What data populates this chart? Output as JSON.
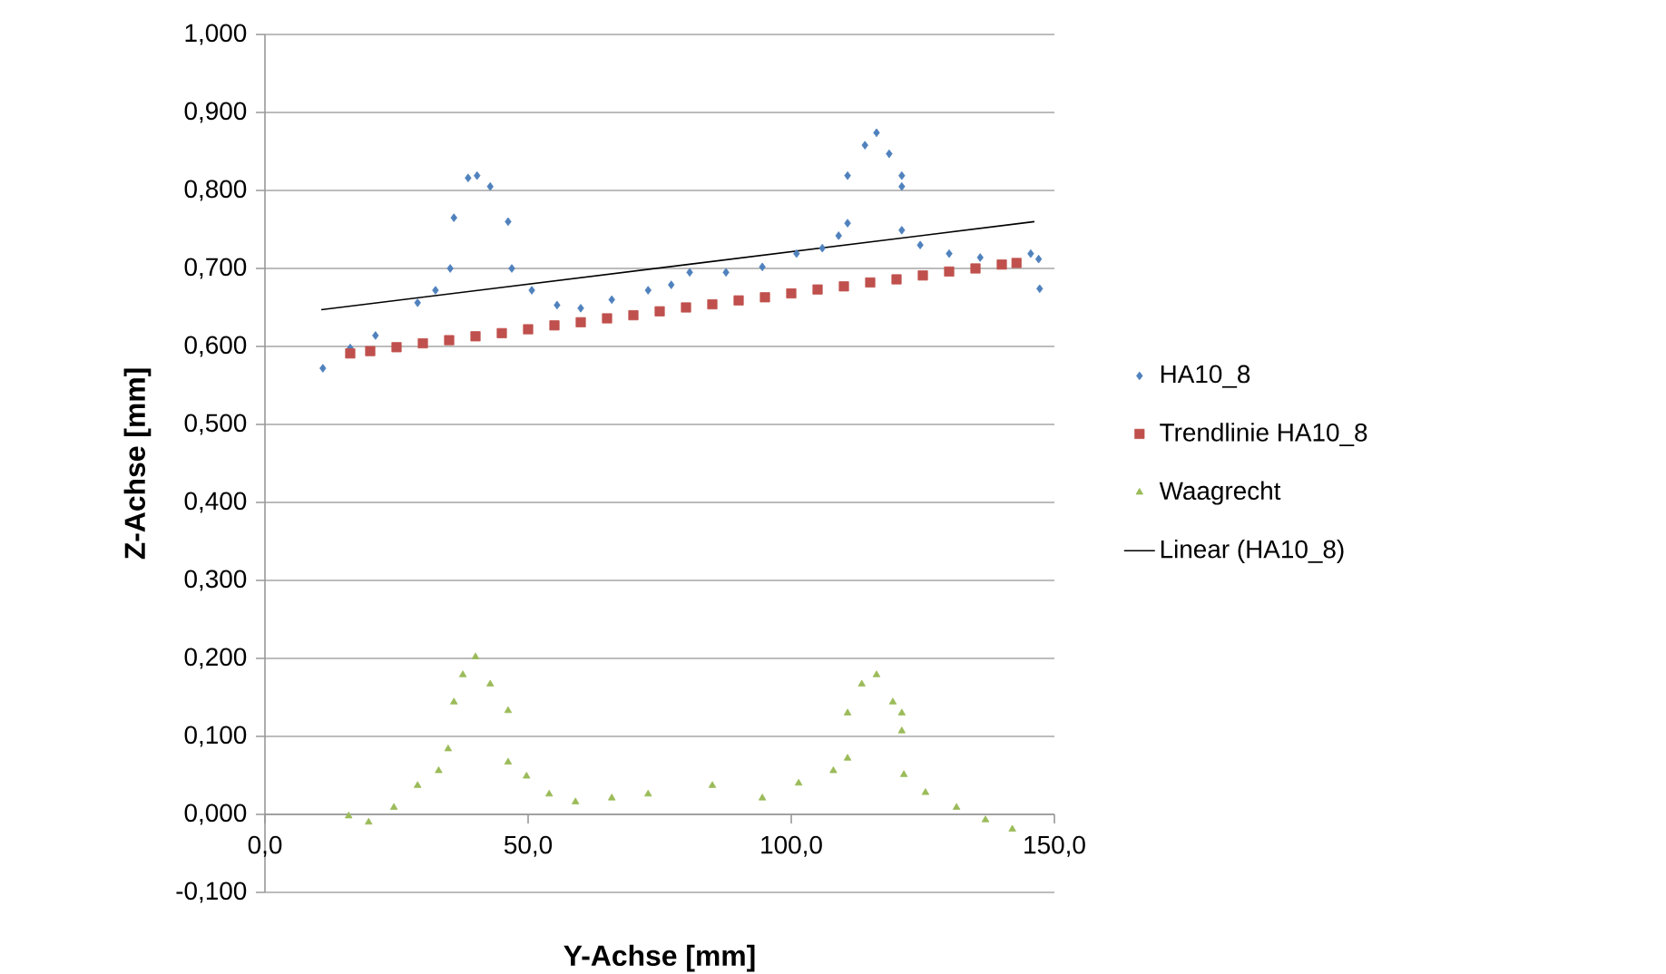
{
  "chart_data": {
    "type": "scatter",
    "xlabel": "Y-Achse [mm]",
    "ylabel": "Z-Achse [mm]",
    "xlim": [
      0,
      150
    ],
    "ylim": [
      -0.1,
      1.0
    ],
    "xticks": [
      {
        "value": 0,
        "label": "0,0"
      },
      {
        "value": 50,
        "label": "50,0"
      },
      {
        "value": 100,
        "label": "100,0"
      },
      {
        "value": 150,
        "label": "150,0"
      }
    ],
    "yticks": [
      {
        "value": -0.1,
        "label": "-0,100"
      },
      {
        "value": 0,
        "label": "0,000"
      },
      {
        "value": 0.1,
        "label": "0,100"
      },
      {
        "value": 0.2,
        "label": "0,200"
      },
      {
        "value": 0.3,
        "label": "0,300"
      },
      {
        "value": 0.4,
        "label": "0,400"
      },
      {
        "value": 0.5,
        "label": "0,500"
      },
      {
        "value": 0.6,
        "label": "0,600"
      },
      {
        "value": 0.7,
        "label": "0,700"
      },
      {
        "value": 0.8,
        "label": "0,800"
      },
      {
        "value": 0.9,
        "label": "0,900"
      },
      {
        "value": 1.0,
        "label": "1,000"
      }
    ],
    "grid": "y",
    "legend": "right",
    "series": [
      {
        "name": "HA10_8",
        "color": "#4f81bd",
        "marker": "diamond",
        "x": [
          11,
          16.2,
          21,
          29,
          32.4,
          35.2,
          35.9,
          38.6,
          40.3,
          42.8,
          46.2,
          46.9,
          50.7,
          55.5,
          60,
          65.9,
          72.8,
          77.2,
          80.7,
          87.6,
          94.5,
          101,
          105.9,
          109,
          110.7,
          110.7,
          114,
          116.2,
          118.6,
          121,
          121,
          121,
          124.5,
          130,
          135.9,
          145.5,
          147,
          147.2
        ],
        "values": [
          0.572,
          0.598,
          0.614,
          0.656,
          0.672,
          0.7,
          0.765,
          0.816,
          0.819,
          0.805,
          0.76,
          0.7,
          0.672,
          0.653,
          0.649,
          0.66,
          0.672,
          0.679,
          0.695,
          0.695,
          0.702,
          0.719,
          0.726,
          0.742,
          0.758,
          0.819,
          0.858,
          0.874,
          0.847,
          0.819,
          0.805,
          0.749,
          0.73,
          0.719,
          0.714,
          0.719,
          0.712,
          0.674
        ]
      },
      {
        "name": "Trendlinie HA10_8",
        "color": "#c0504d",
        "marker": "square",
        "x": [
          16.2,
          20,
          25,
          30,
          35,
          40,
          45,
          50,
          55,
          60,
          65,
          70,
          75,
          80,
          85,
          90,
          95,
          100,
          105,
          110,
          115,
          120,
          125,
          130,
          135,
          140,
          142.8
        ],
        "values": [
          0.591,
          0.594,
          0.599,
          0.604,
          0.608,
          0.613,
          0.617,
          0.622,
          0.627,
          0.631,
          0.636,
          0.64,
          0.645,
          0.65,
          0.654,
          0.659,
          0.663,
          0.668,
          0.673,
          0.677,
          0.682,
          0.686,
          0.691,
          0.696,
          0.7,
          0.705,
          0.707
        ]
      },
      {
        "name": "Waagrecht",
        "color": "#9bbb59",
        "marker": "triangle",
        "x": [
          15.9,
          19.7,
          24.5,
          29,
          33,
          34.8,
          35.9,
          37.6,
          40,
          42.8,
          46.2,
          46.2,
          49.7,
          54,
          59,
          65.9,
          72.8,
          85,
          94.5,
          101.4,
          108,
          110.7,
          110.7,
          113.4,
          116.2,
          119.3,
          121,
          121,
          121.4,
          125.5,
          131.4,
          136.9,
          142
        ],
        "values": [
          -0.002,
          -0.01,
          0.009,
          0.037,
          0.056,
          0.084,
          0.144,
          0.179,
          0.202,
          0.167,
          0.133,
          0.067,
          0.049,
          0.026,
          0.016,
          0.021,
          0.026,
          0.037,
          0.021,
          0.04,
          0.056,
          0.072,
          0.13,
          0.167,
          0.179,
          0.144,
          0.13,
          0.107,
          0.051,
          0.028,
          0.009,
          -0.007,
          -0.019
        ]
      },
      {
        "name": "Linear (HA10_8)",
        "type": "line",
        "color": "#000000",
        "marker": "none",
        "line_style": "solid",
        "x": [
          10.7,
          146.2
        ],
        "values": [
          0.647,
          0.76
        ]
      }
    ]
  }
}
